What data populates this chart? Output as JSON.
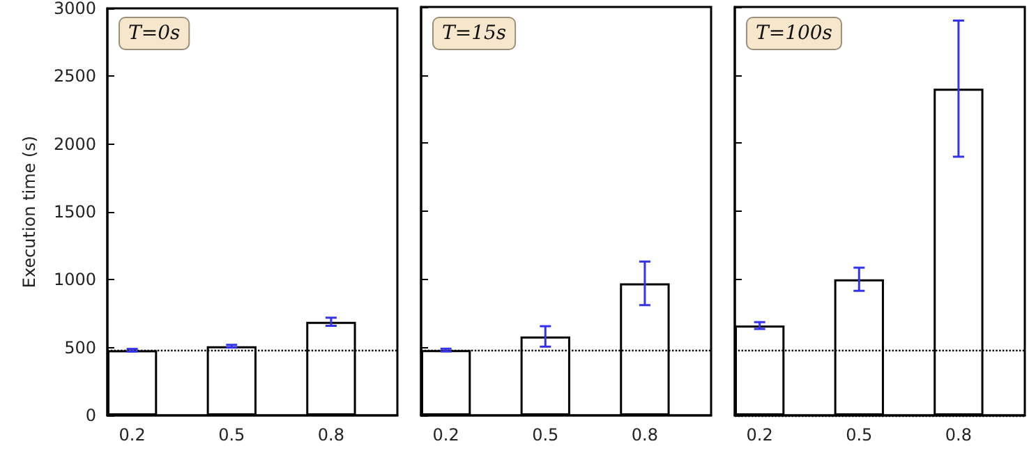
{
  "chart_data": [
    {
      "type": "bar",
      "ylabel": "Execution time (s)",
      "annotations": [
        "T=0s"
      ],
      "x": [
        0.2,
        0.5,
        0.8
      ],
      "xlim": [
        0.125,
        1.0
      ],
      "xticks": [
        0.2,
        0.5,
        0.8
      ],
      "ylim": [
        0,
        3000
      ],
      "yticks": [
        0,
        500,
        1000,
        1500,
        2000,
        2500,
        3000
      ],
      "series": [
        {
          "color": "#ffffff",
          "values": [
            480,
            510,
            690
          ],
          "errors": [
            10,
            10,
            30
          ]
        }
      ],
      "ref_lines": [
        {
          "axis": "y",
          "value": 480,
          "color": "#000000",
          "line_style": "dotted"
        }
      ],
      "grid": false
    },
    {
      "type": "bar",
      "annotations": [
        "T=15s"
      ],
      "x": [
        0.2,
        0.5,
        0.8
      ],
      "xlim": [
        0.125,
        1.0
      ],
      "xticks": [
        0.2,
        0.5,
        0.8
      ],
      "ylim": [
        0,
        3000
      ],
      "yticks": [
        0,
        500,
        1000,
        1500,
        2000,
        2500,
        3000
      ],
      "tick_labels": "x",
      "series": [
        {
          "color": "#ffffff",
          "values": [
            480,
            580,
            970
          ],
          "errors": [
            10,
            75,
            160
          ]
        }
      ],
      "ref_lines": [
        {
          "axis": "y",
          "value": 480,
          "color": "#000000",
          "line_style": "dotted"
        }
      ],
      "grid": false
    },
    {
      "type": "bar",
      "annotations": [
        "T=100s"
      ],
      "x": [
        0.2,
        0.5,
        0.8
      ],
      "xlim": [
        0.125,
        1.0
      ],
      "xticks": [
        0.2,
        0.5,
        0.8
      ],
      "ylim": [
        0,
        3000
      ],
      "yticks": [
        0,
        500,
        1000,
        1500,
        2000,
        2500,
        3000
      ],
      "tick_labels": "x",
      "series": [
        {
          "color": "#ffffff",
          "values": [
            660,
            1000,
            2400
          ],
          "errors": [
            25,
            85,
            500
          ]
        }
      ],
      "ref_lines": [
        {
          "axis": "y",
          "value": 480,
          "color": "#000000",
          "line_style": "dotted"
        },
        {
          "axis": "y",
          "value": 0,
          "color": "#000000",
          "line_style": "dotted"
        }
      ],
      "grid": false
    }
  ]
}
